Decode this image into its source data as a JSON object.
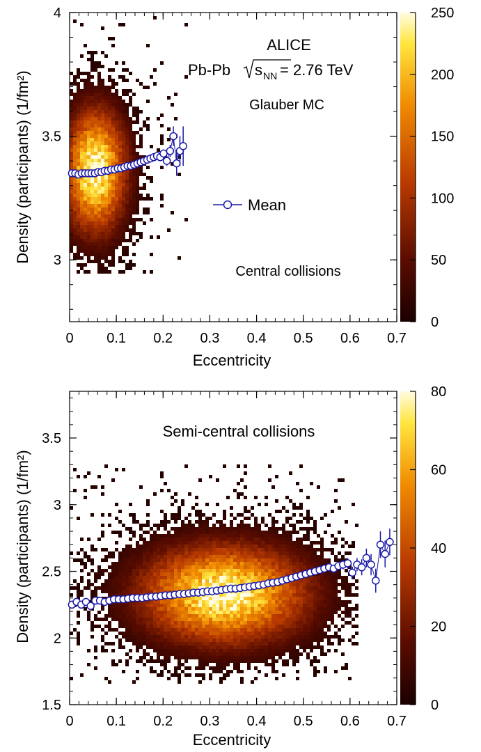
{
  "chart_data": [
    {
      "type": "heatmap",
      "panel": "central",
      "title": "",
      "xlabel": "Eccentricity",
      "ylabel": "Density (participants) (1/fm²)",
      "xlim": [
        0,
        0.7
      ],
      "ylim": [
        2.75,
        4.0
      ],
      "zlim": [
        0,
        250
      ],
      "xticks": [
        "0",
        "0.1",
        "0.2",
        "0.3",
        "0.4",
        "0.5",
        "0.6",
        "0.7"
      ],
      "yticks": [
        "3",
        "3.5",
        "4"
      ],
      "zticks": [
        "0",
        "50",
        "100",
        "150",
        "200",
        "250"
      ],
      "annotations": {
        "experiment": "ALICE",
        "system_prefix": "Pb-Pb",
        "system_energy": "= 2.76 TeV",
        "model": "Glauber MC",
        "class": "Central collisions",
        "legend_label": "Mean"
      },
      "density_blob": {
        "x_center": 0.055,
        "y_center": 3.36,
        "x_sigma": 0.045,
        "y_sigma": 0.17,
        "x_max": 0.25,
        "y_min": 2.95,
        "y_max": 3.98,
        "peak": 250
      },
      "series": [
        {
          "name": "Mean",
          "x": [
            0.005,
            0.012,
            0.019,
            0.026,
            0.033,
            0.04,
            0.047,
            0.054,
            0.061,
            0.068,
            0.075,
            0.082,
            0.089,
            0.096,
            0.103,
            0.11,
            0.117,
            0.124,
            0.131,
            0.138,
            0.145,
            0.152,
            0.159,
            0.166,
            0.173,
            0.18,
            0.187,
            0.194,
            0.201,
            0.208,
            0.215,
            0.222,
            0.229,
            0.236,
            0.243
          ],
          "y": [
            3.35,
            3.35,
            3.345,
            3.35,
            3.35,
            3.35,
            3.35,
            3.35,
            3.355,
            3.355,
            3.36,
            3.36,
            3.365,
            3.365,
            3.37,
            3.37,
            3.375,
            3.38,
            3.38,
            3.385,
            3.39,
            3.395,
            3.4,
            3.405,
            3.41,
            3.415,
            3.42,
            3.415,
            3.43,
            3.4,
            3.44,
            3.5,
            3.39,
            3.44,
            3.46
          ],
          "yerr": [
            0.003,
            0.003,
            0.003,
            0.003,
            0.003,
            0.003,
            0.003,
            0.003,
            0.003,
            0.003,
            0.004,
            0.004,
            0.004,
            0.004,
            0.004,
            0.005,
            0.005,
            0.005,
            0.006,
            0.006,
            0.007,
            0.007,
            0.008,
            0.009,
            0.01,
            0.011,
            0.012,
            0.014,
            0.016,
            0.02,
            0.025,
            0.04,
            0.05,
            0.06,
            0.08
          ]
        }
      ]
    },
    {
      "type": "heatmap",
      "panel": "semi-central",
      "title": "",
      "xlabel": "Eccentricity",
      "ylabel": "Density (participants) (1/fm²)",
      "xlim": [
        0,
        0.7
      ],
      "ylim": [
        1.5,
        3.85
      ],
      "zlim": [
        0,
        80
      ],
      "xticks": [
        "0",
        "0.1",
        "0.2",
        "0.3",
        "0.4",
        "0.5",
        "0.6",
        "0.7"
      ],
      "yticks": [
        "1.5",
        "2",
        "2.5",
        "3",
        "3.5"
      ],
      "zticks": [
        "0",
        "20",
        "40",
        "60",
        "80"
      ],
      "annotations": {
        "class": "Semi-central collisions"
      },
      "density_blob": {
        "x_center": 0.33,
        "y_center": 2.33,
        "x_sigma": 0.12,
        "y_sigma": 0.25,
        "x_min": 0.0,
        "x_max": 0.62,
        "y_min": 1.65,
        "y_max": 3.3,
        "peak": 80
      },
      "series": [
        {
          "name": "Mean",
          "x": [
            0.005,
            0.015,
            0.025,
            0.035,
            0.045,
            0.055,
            0.065,
            0.075,
            0.085,
            0.095,
            0.105,
            0.115,
            0.125,
            0.135,
            0.145,
            0.155,
            0.165,
            0.175,
            0.185,
            0.195,
            0.205,
            0.215,
            0.225,
            0.235,
            0.245,
            0.255,
            0.265,
            0.275,
            0.285,
            0.295,
            0.305,
            0.315,
            0.325,
            0.335,
            0.345,
            0.355,
            0.365,
            0.375,
            0.385,
            0.395,
            0.405,
            0.415,
            0.425,
            0.435,
            0.445,
            0.455,
            0.465,
            0.475,
            0.485,
            0.495,
            0.505,
            0.515,
            0.525,
            0.535,
            0.545,
            0.555,
            0.565,
            0.575,
            0.585,
            0.595,
            0.605,
            0.615,
            0.625,
            0.635,
            0.645,
            0.655,
            0.665,
            0.675,
            0.685
          ],
          "y": [
            2.25,
            2.27,
            2.25,
            2.27,
            2.24,
            2.28,
            2.28,
            2.27,
            2.28,
            2.29,
            2.29,
            2.29,
            2.295,
            2.3,
            2.3,
            2.3,
            2.305,
            2.31,
            2.31,
            2.315,
            2.32,
            2.32,
            2.325,
            2.33,
            2.33,
            2.335,
            2.34,
            2.34,
            2.345,
            2.35,
            2.35,
            2.355,
            2.36,
            2.365,
            2.37,
            2.37,
            2.375,
            2.38,
            2.385,
            2.39,
            2.395,
            2.4,
            2.41,
            2.415,
            2.42,
            2.43,
            2.44,
            2.45,
            2.46,
            2.47,
            2.48,
            2.49,
            2.5,
            2.51,
            2.52,
            2.53,
            2.52,
            2.54,
            2.55,
            2.56,
            2.49,
            2.55,
            2.53,
            2.6,
            2.55,
            2.43,
            2.7,
            2.63,
            2.72
          ],
          "yerr": [
            0.01,
            0.008,
            0.006,
            0.005,
            0.005,
            0.004,
            0.004,
            0.004,
            0.003,
            0.003,
            0.003,
            0.003,
            0.003,
            0.003,
            0.003,
            0.003,
            0.003,
            0.003,
            0.003,
            0.003,
            0.003,
            0.003,
            0.003,
            0.003,
            0.003,
            0.003,
            0.003,
            0.003,
            0.003,
            0.003,
            0.003,
            0.003,
            0.003,
            0.003,
            0.003,
            0.003,
            0.003,
            0.003,
            0.003,
            0.003,
            0.003,
            0.004,
            0.004,
            0.004,
            0.005,
            0.005,
            0.006,
            0.006,
            0.007,
            0.008,
            0.009,
            0.01,
            0.012,
            0.014,
            0.016,
            0.02,
            0.025,
            0.03,
            0.035,
            0.04,
            0.045,
            0.05,
            0.06,
            0.07,
            0.08,
            0.09,
            0.1,
            0.1,
            0.1
          ]
        }
      ]
    }
  ]
}
